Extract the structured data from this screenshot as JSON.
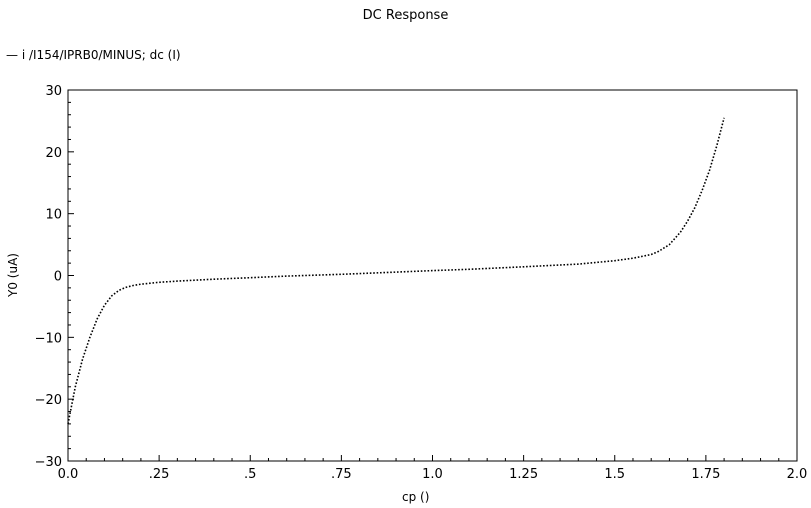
{
  "chart_data": {
    "type": "line",
    "title": "DC Response",
    "xlabel": "cp ()",
    "ylabel": "Y0 (uA)",
    "xlim": [
      0.0,
      2.0
    ],
    "ylim": [
      -30,
      30
    ],
    "x_ticks": [
      0.0,
      0.25,
      0.5,
      0.75,
      1.0,
      1.25,
      1.5,
      1.75,
      2.0
    ],
    "x_tick_labels": [
      "0.0",
      ".25",
      ".5",
      ".75",
      "1.0",
      "1.25",
      "1.5",
      "1.75",
      "2.0"
    ],
    "y_ticks": [
      -30,
      -20,
      -10,
      0,
      10,
      20,
      30
    ],
    "y_tick_labels": [
      "−30",
      "−20",
      "−10",
      "0",
      "10",
      "20",
      "30"
    ],
    "grid": false,
    "legend_position": "top-left",
    "series": [
      {
        "name": "i /I154/IPRB0/MINUS; dc (I)",
        "color": "#000000",
        "line_style": "dotted",
        "x": [
          0.0,
          0.02,
          0.04,
          0.06,
          0.08,
          0.1,
          0.12,
          0.14,
          0.16,
          0.18,
          0.2,
          0.25,
          0.3,
          0.4,
          0.5,
          0.6,
          0.75,
          0.9,
          1.0,
          1.1,
          1.25,
          1.4,
          1.5,
          1.55,
          1.6,
          1.62,
          1.65,
          1.68,
          1.7,
          1.72,
          1.74,
          1.76,
          1.78,
          1.8
        ],
        "y": [
          -24.0,
          -18.0,
          -13.5,
          -10.0,
          -7.0,
          -4.8,
          -3.3,
          -2.4,
          -1.9,
          -1.6,
          -1.4,
          -1.1,
          -0.9,
          -0.6,
          -0.35,
          -0.1,
          0.2,
          0.55,
          0.8,
          1.0,
          1.4,
          1.85,
          2.4,
          2.8,
          3.4,
          3.9,
          5.0,
          7.0,
          8.8,
          11.0,
          13.8,
          17.0,
          21.0,
          25.5
        ]
      }
    ]
  }
}
